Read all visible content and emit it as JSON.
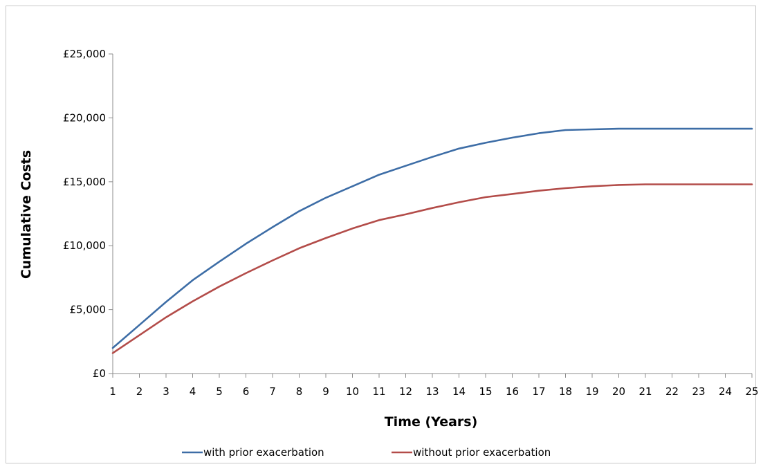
{
  "chart_data": {
    "type": "line",
    "title": "",
    "xlabel": "Time (Years)",
    "ylabel": "Cumulative Costs",
    "x": [
      1,
      2,
      3,
      4,
      5,
      6,
      7,
      8,
      9,
      10,
      11,
      12,
      13,
      14,
      15,
      16,
      17,
      18,
      19,
      20,
      21,
      22,
      23,
      24,
      25
    ],
    "ylim": [
      0,
      25000
    ],
    "yticks": [
      0,
      5000,
      10000,
      15000,
      20000,
      25000
    ],
    "ytick_labels": [
      "£0",
      "£5,000",
      "£10,000",
      "£15,000",
      "£20,000",
      "£25,000"
    ],
    "grid": false,
    "legend_position": "bottom",
    "series": [
      {
        "name": "with prior exacerbation",
        "color": "#3d6da6",
        "values": [
          2000,
          3800,
          5600,
          7300,
          8750,
          10150,
          11450,
          12700,
          13750,
          14650,
          15550,
          16250,
          16950,
          17600,
          18050,
          18450,
          18800,
          19050,
          19100,
          19150,
          19150,
          19150,
          19150,
          19150,
          19150
        ]
      },
      {
        "name": "without prior exacerbation",
        "color": "#b34c49",
        "values": [
          1600,
          3000,
          4400,
          5650,
          6800,
          7850,
          8850,
          9800,
          10600,
          11350,
          12000,
          12450,
          12950,
          13400,
          13800,
          14050,
          14300,
          14500,
          14650,
          14750,
          14800,
          14800,
          14800,
          14800,
          14800
        ]
      }
    ]
  }
}
